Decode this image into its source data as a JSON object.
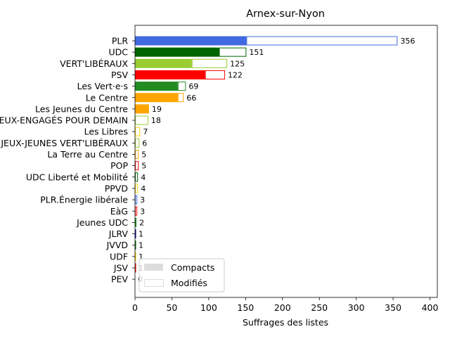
{
  "chart_data": {
    "type": "bar",
    "orientation": "horizontal",
    "stacked": true,
    "title": "Arnex-sur-Nyon",
    "xlabel": "Suffrages des listes",
    "ylabel": "",
    "xlim": [
      0,
      410
    ],
    "xticks": [
      0,
      50,
      100,
      150,
      200,
      250,
      300,
      350,
      400
    ],
    "grid": false,
    "legend_position": "lower-left",
    "categories": [
      "PLR",
      "UDC",
      "VERT'LIBÉRAUX",
      "PSV",
      "Les Vert·e·s",
      "Le Centre",
      "Les Jeunes du Centre",
      "JEUX-ENGAGÉS POUR DEMAIN",
      "Les Libres",
      "JEUX-JEUNES VERT'LIBÉRAUX",
      "La Terre au Centre",
      "POP",
      "UDC Liberté et Mobilité",
      "PPVD",
      "PLR.Énergie libérale",
      "EàG",
      "Jeunes UDC",
      "JLRV",
      "JVVD",
      "UDF",
      "JSV",
      "PEV"
    ],
    "colors": [
      "#4169e1",
      "#006400",
      "#9acd32",
      "#ff0000",
      "#228b22",
      "#ffa500",
      "#ffa500",
      "#9acd32",
      "#ffd700",
      "#9acd32",
      "#ffa500",
      "#ff0000",
      "#006400",
      "#ffd700",
      "#4169e1",
      "#ff0000",
      "#228b22",
      "#00008b",
      "#006400",
      "#ffd700",
      "#ff0000",
      "#ffd700"
    ],
    "series": [
      {
        "name": "Compacts",
        "values": [
          151,
          114,
          77,
          95,
          58,
          58,
          19,
          0,
          0,
          0,
          0,
          0,
          0,
          0,
          0,
          0,
          0,
          0,
          0,
          0,
          0,
          0
        ]
      },
      {
        "name": "Modifiés",
        "values": [
          205,
          37,
          48,
          27,
          11,
          8,
          0,
          18,
          7,
          6,
          5,
          5,
          4,
          4,
          3,
          3,
          2,
          1,
          1,
          1,
          1,
          0
        ]
      }
    ],
    "totals": [
      356,
      151,
      125,
      122,
      69,
      66,
      19,
      18,
      7,
      6,
      5,
      5,
      4,
      4,
      3,
      3,
      2,
      1,
      1,
      1,
      1,
      0
    ]
  }
}
